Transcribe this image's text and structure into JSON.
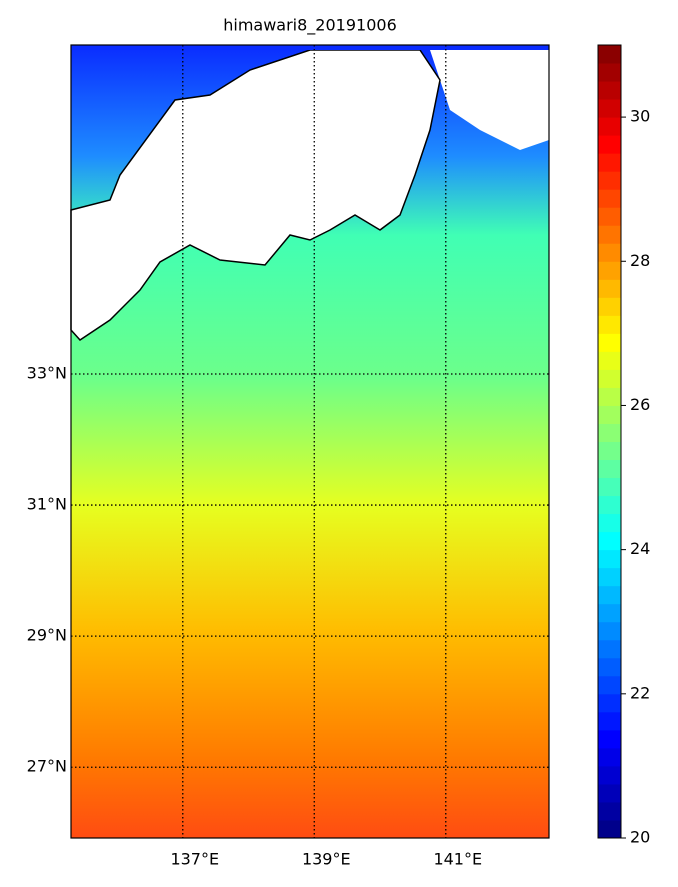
{
  "chart_data": {
    "type": "map",
    "title": "himawari8_20191006",
    "xlim": [
      135.3,
      142.57
    ],
    "ylim": [
      25.92,
      38.02
    ],
    "xticks": [
      {
        "value": 137,
        "label": "137°E"
      },
      {
        "value": 139,
        "label": "139°E"
      },
      {
        "value": 141,
        "label": "141°E"
      }
    ],
    "yticks": [
      {
        "value": 27,
        "label": "27°N"
      },
      {
        "value": 29,
        "label": "29°N"
      },
      {
        "value": 31,
        "label": "31°N"
      },
      {
        "value": 33,
        "label": "33°N"
      }
    ],
    "clim": [
      20,
      31
    ],
    "cticks": [
      20,
      22,
      24,
      26,
      28,
      30
    ],
    "colormap": "jet",
    "grid": true
  }
}
